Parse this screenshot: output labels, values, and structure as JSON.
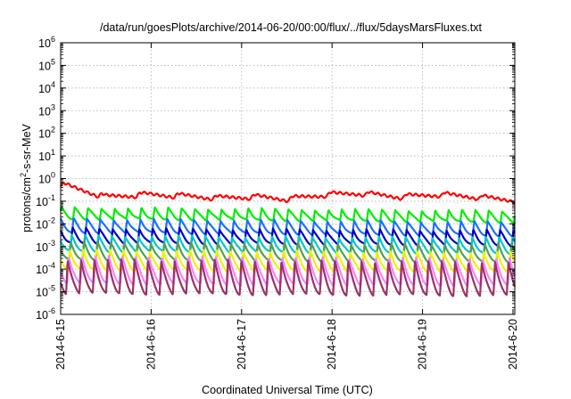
{
  "chart_data": {
    "type": "line",
    "title": "/data/run/goesPlots/archive/2014-06-20/00:00/flux/../flux/5daysMarsFluxes.txt",
    "xlabel": "Coordinated Universal Time (UTC)",
    "ylabel": {
      "prefix": "protons/cm",
      "sup": "2",
      "suffix": "-s-sr-MeV"
    },
    "x_ticks": [
      "2014-6-15",
      "2014-6-16",
      "2014-6-17",
      "2014-6-18",
      "2014-6-19",
      "2014-6-20"
    ],
    "x_range_days": [
      0,
      5.02
    ],
    "yscale": "log",
    "y_exponent_range": [
      -6,
      6
    ],
    "y_ticks": [
      {
        "base": "10",
        "exp": "-6"
      },
      {
        "base": "10",
        "exp": "-5"
      },
      {
        "base": "10",
        "exp": "-4"
      },
      {
        "base": "10",
        "exp": "-3"
      },
      {
        "base": "10",
        "exp": "-2"
      },
      {
        "base": "10",
        "exp": "-1"
      },
      {
        "base": "10",
        "exp": "0"
      },
      {
        "base": "10",
        "exp": "1"
      },
      {
        "base": "10",
        "exp": "2"
      },
      {
        "base": "10",
        "exp": "3"
      },
      {
        "base": "10",
        "exp": "4"
      },
      {
        "base": "10",
        "exp": "5"
      },
      {
        "base": "10",
        "exp": "6"
      }
    ],
    "grid": true,
    "series": [
      {
        "color": "#ff0000",
        "width": 2.2,
        "kind": "smooth",
        "trend": [
          [
            0,
            -0.25
          ],
          [
            0.5,
            -0.8
          ],
          [
            0.95,
            -0.7
          ],
          [
            1.3,
            -0.75
          ],
          [
            1.75,
            -0.85
          ],
          [
            2.15,
            -0.8
          ],
          [
            2.5,
            -0.9
          ],
          [
            2.95,
            -0.7
          ],
          [
            3.3,
            -0.65
          ],
          [
            3.75,
            -0.8
          ],
          [
            4.2,
            -0.7
          ],
          [
            4.55,
            -0.8
          ],
          [
            5.02,
            -0.95
          ]
        ],
        "amp": 0.35
      },
      {
        "color": "#00ee00",
        "width": 2.2,
        "kind": "spiky",
        "trend": [
          [
            0,
            -1.55
          ],
          [
            5.02,
            -1.7
          ]
        ],
        "amp": 0.5
      },
      {
        "color": "#1e6fff",
        "width": 2.2,
        "kind": "spiky",
        "trend": [
          [
            0,
            -2.1
          ],
          [
            5.02,
            -2.25
          ]
        ],
        "amp": 0.6
      },
      {
        "color": "#0000c8",
        "width": 2.2,
        "kind": "spiky",
        "trend": [
          [
            0,
            -2.55
          ],
          [
            5.02,
            -2.65
          ]
        ],
        "amp": 0.65
      },
      {
        "color": "#00c8c8",
        "width": 2.2,
        "kind": "spiky",
        "trend": [
          [
            0,
            -2.9
          ],
          [
            5.02,
            -3.0
          ]
        ],
        "amp": 0.7
      },
      {
        "color": "#50a050",
        "width": 2.2,
        "kind": "spiky",
        "trend": [
          [
            0,
            -3.25
          ],
          [
            5.02,
            -3.35
          ]
        ],
        "amp": 0.8
      },
      {
        "color": "#f0f000",
        "width": 2.2,
        "kind": "spiky",
        "trend": [
          [
            0,
            -3.65
          ],
          [
            5.02,
            -3.75
          ]
        ],
        "amp": 0.9
      },
      {
        "color": "#ff80ff",
        "width": 2.2,
        "kind": "spiky",
        "trend": [
          [
            0,
            -4.1
          ],
          [
            5.02,
            -4.2
          ]
        ],
        "amp": 1.2
      },
      {
        "color": "#993366",
        "width": 2.2,
        "kind": "spiky",
        "trend": [
          [
            0,
            -4.4
          ],
          [
            5.02,
            -4.5
          ]
        ],
        "amp": 1.5
      }
    ]
  }
}
